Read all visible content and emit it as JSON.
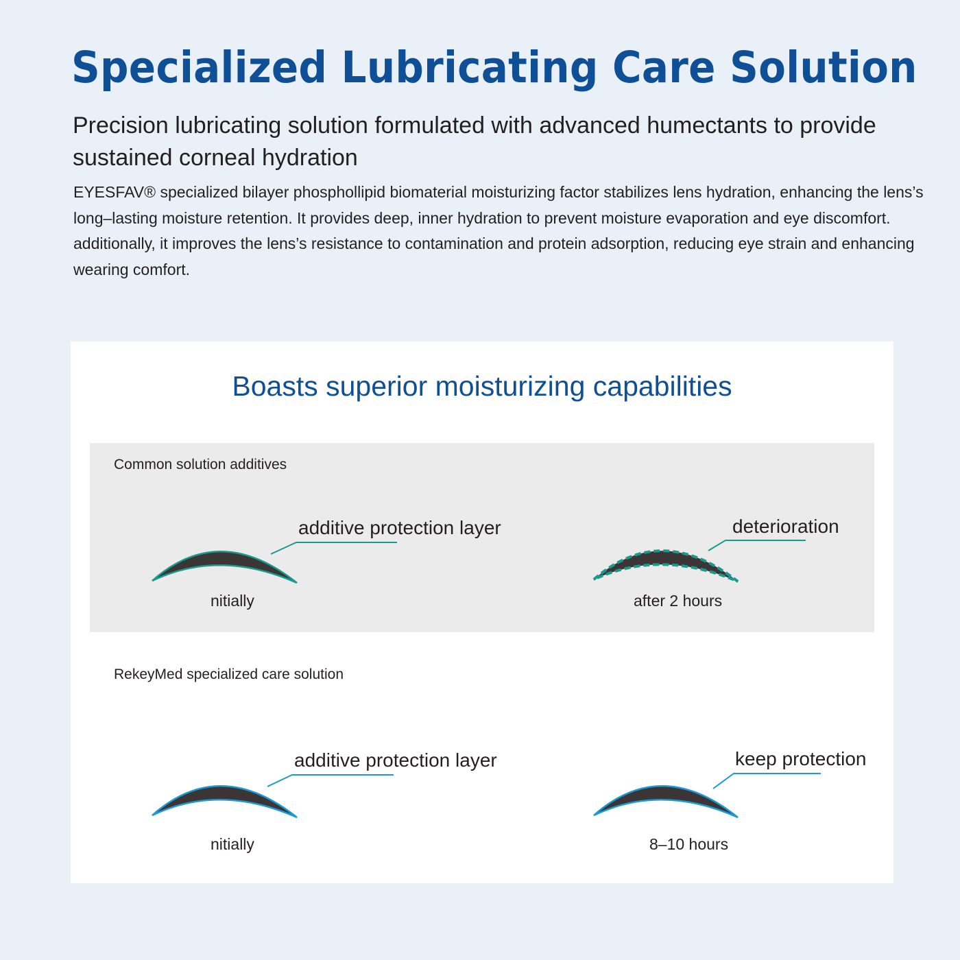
{
  "header": {
    "title": "Specialized Lubricating Care Solution",
    "subtitle": "Precision lubricating solution formulated with advanced humectants to provide sustained corneal hydration",
    "body": "EYESFAV® specialized bilayer phosphollipid biomaterial moisturizing factor stabilizes lens hydration, enhancing the lens’s long–lasting moisture retention. It provides deep, inner hydration to prevent moisture evaporation and eye discomfort. additionally, it improves the lens’s resistance to contamination and protein adsorption, reducing eye strain and enhancing wearing comfort."
  },
  "comparison": {
    "title": "Boasts superior moisturizing capabilities",
    "common": {
      "heading": "Common solution additives",
      "left": {
        "label": "additive protection layer",
        "caption": "nitially"
      },
      "right": {
        "label": "deterioration",
        "caption": "after 2 hours"
      },
      "color": "#1a9a8f"
    },
    "rekeymed": {
      "heading": "RekeyMed specialized care solution",
      "left": {
        "label": "additive protection layer",
        "caption": "nitially"
      },
      "right": {
        "label": "keep protection",
        "caption": "8–10 hours"
      },
      "color": "#1a9ad6"
    },
    "lens_color": "#3b3536"
  }
}
